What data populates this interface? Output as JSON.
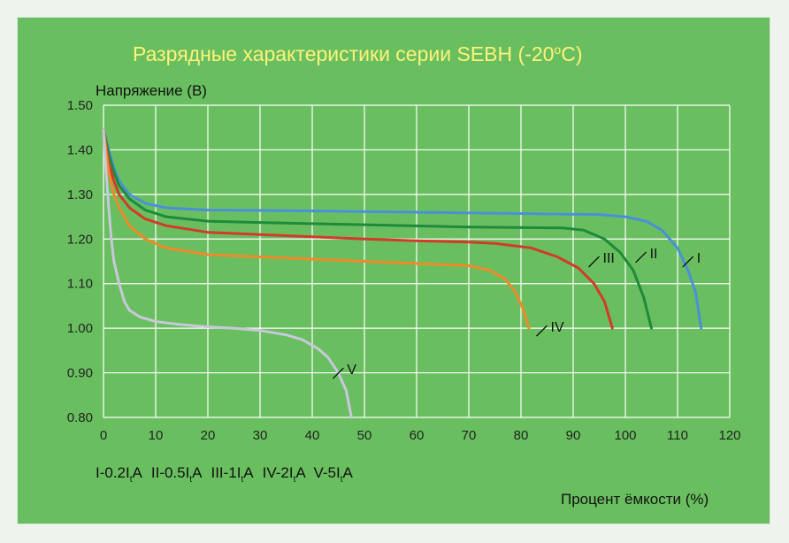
{
  "chart_data": {
    "type": "line",
    "title": "Разрядные характеристики серии SEBH (-20ºC)",
    "title_main": "Разрядные характеристики серии SEBH (-20",
    "title_degree": "о",
    "title_tail": "C)",
    "ylabel": "Напряжение (В)",
    "xlabel": "Процент ёмкости (%)",
    "xlim": [
      0,
      120
    ],
    "ylim": [
      0.8,
      1.5
    ],
    "x_ticks": [
      "0",
      "10",
      "20",
      "30",
      "40",
      "50",
      "60",
      "70",
      "80",
      "90",
      "100",
      "110",
      "120"
    ],
    "y_ticks": [
      "0.80",
      "0.90",
      "1.00",
      "1.10",
      "1.20",
      "1.30",
      "1.40",
      "1.50"
    ],
    "grid": true,
    "colors": {
      "background": "#69bf5f",
      "title": "#fff27a",
      "grid": "#ffffff"
    },
    "legend_parts": [
      [
        "I-0.2I",
        "t",
        "A"
      ],
      [
        "II-0.5I",
        "t",
        "A"
      ],
      [
        "III-1I",
        "t",
        "A"
      ],
      [
        "IV-2I",
        "t",
        "A"
      ],
      [
        "V-5I",
        "t",
        "A"
      ]
    ],
    "series": [
      {
        "name": "I",
        "color": "#4a90d9",
        "label_at": [
          113,
          1.155
        ],
        "points": [
          [
            0,
            1.445
          ],
          [
            1,
            1.4
          ],
          [
            2,
            1.36
          ],
          [
            3,
            1.33
          ],
          [
            5,
            1.3
          ],
          [
            8,
            1.28
          ],
          [
            12,
            1.27
          ],
          [
            20,
            1.265
          ],
          [
            40,
            1.263
          ],
          [
            60,
            1.26
          ],
          [
            80,
            1.257
          ],
          [
            95,
            1.255
          ],
          [
            100,
            1.25
          ],
          [
            104,
            1.24
          ],
          [
            107,
            1.22
          ],
          [
            110,
            1.18
          ],
          [
            112,
            1.13
          ],
          [
            113.5,
            1.08
          ],
          [
            114.5,
            1.0
          ]
        ]
      },
      {
        "name": "II",
        "color": "#1e8a3c",
        "label_at": [
          104,
          1.165
        ],
        "points": [
          [
            0,
            1.445
          ],
          [
            1,
            1.39
          ],
          [
            2,
            1.35
          ],
          [
            3,
            1.32
          ],
          [
            5,
            1.29
          ],
          [
            8,
            1.265
          ],
          [
            12,
            1.25
          ],
          [
            20,
            1.24
          ],
          [
            30,
            1.237
          ],
          [
            50,
            1.232
          ],
          [
            70,
            1.227
          ],
          [
            88,
            1.225
          ],
          [
            92,
            1.22
          ],
          [
            96,
            1.2
          ],
          [
            99,
            1.17
          ],
          [
            101.5,
            1.13
          ],
          [
            103.5,
            1.07
          ],
          [
            105,
            1.0
          ]
        ]
      },
      {
        "name": "III",
        "color": "#d23b2b",
        "label_at": [
          95,
          1.155
        ],
        "points": [
          [
            0,
            1.445
          ],
          [
            1,
            1.37
          ],
          [
            2,
            1.33
          ],
          [
            3,
            1.3
          ],
          [
            5,
            1.27
          ],
          [
            8,
            1.245
          ],
          [
            12,
            1.23
          ],
          [
            20,
            1.215
          ],
          [
            30,
            1.21
          ],
          [
            40,
            1.205
          ],
          [
            50,
            1.2
          ],
          [
            60,
            1.196
          ],
          [
            70,
            1.193
          ],
          [
            75,
            1.19
          ],
          [
            82,
            1.18
          ],
          [
            87,
            1.16
          ],
          [
            91,
            1.135
          ],
          [
            94,
            1.1
          ],
          [
            96,
            1.06
          ],
          [
            97.5,
            1.0
          ]
        ]
      },
      {
        "name": "IV",
        "color": "#ef8a2a",
        "label_at": [
          85,
          1.0
        ],
        "points": [
          [
            0,
            1.445
          ],
          [
            1,
            1.35
          ],
          [
            2,
            1.3
          ],
          [
            3,
            1.27
          ],
          [
            5,
            1.23
          ],
          [
            8,
            1.2
          ],
          [
            12,
            1.18
          ],
          [
            20,
            1.165
          ],
          [
            30,
            1.16
          ],
          [
            40,
            1.155
          ],
          [
            50,
            1.15
          ],
          [
            60,
            1.145
          ],
          [
            70,
            1.14
          ],
          [
            74,
            1.13
          ],
          [
            77,
            1.11
          ],
          [
            79,
            1.08
          ],
          [
            80.5,
            1.04
          ],
          [
            81.5,
            1.0
          ]
        ]
      },
      {
        "name": "V",
        "color": "#c8c8dc",
        "label_at": [
          46,
          0.905
        ],
        "points": [
          [
            0,
            1.445
          ],
          [
            0.5,
            1.35
          ],
          [
            1,
            1.27
          ],
          [
            1.5,
            1.2
          ],
          [
            2,
            1.15
          ],
          [
            3,
            1.1
          ],
          [
            4,
            1.06
          ],
          [
            5,
            1.04
          ],
          [
            7,
            1.025
          ],
          [
            10,
            1.015
          ],
          [
            15,
            1.008
          ],
          [
            20,
            1.003
          ],
          [
            25,
            1.0
          ],
          [
            30,
            0.995
          ],
          [
            35,
            0.985
          ],
          [
            38,
            0.975
          ],
          [
            41,
            0.955
          ],
          [
            43,
            0.935
          ],
          [
            45,
            0.9
          ],
          [
            46.5,
            0.86
          ],
          [
            47.5,
            0.8
          ]
        ]
      }
    ]
  }
}
